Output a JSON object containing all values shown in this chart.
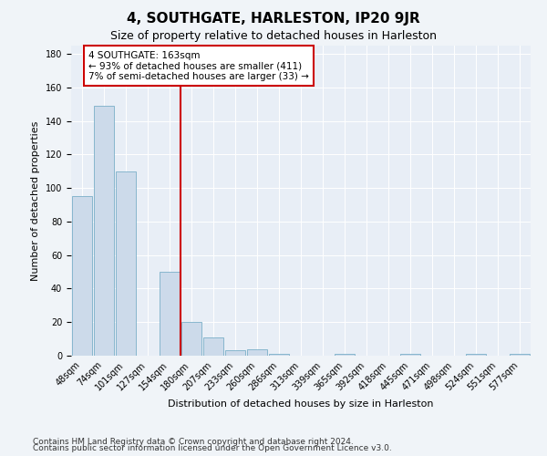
{
  "title": "4, SOUTHGATE, HARLESTON, IP20 9JR",
  "subtitle": "Size of property relative to detached houses in Harleston",
  "xlabel": "Distribution of detached houses by size in Harleston",
  "ylabel": "Number of detached properties",
  "categories": [
    "48sqm",
    "74sqm",
    "101sqm",
    "127sqm",
    "154sqm",
    "180sqm",
    "207sqm",
    "233sqm",
    "260sqm",
    "286sqm",
    "313sqm",
    "339sqm",
    "365sqm",
    "392sqm",
    "418sqm",
    "445sqm",
    "471sqm",
    "498sqm",
    "524sqm",
    "551sqm",
    "577sqm"
  ],
  "values": [
    95,
    149,
    110,
    0,
    50,
    20,
    11,
    3,
    4,
    1,
    0,
    0,
    1,
    0,
    0,
    1,
    0,
    0,
    1,
    0,
    1
  ],
  "bar_color": "#ccdaea",
  "bar_edge_color": "#7aafc8",
  "vline_x": 4.5,
  "annotation_text": "4 SOUTHGATE: 163sqm\n← 93% of detached houses are smaller (411)\n7% of semi-detached houses are larger (33) →",
  "annotation_box_color": "#ffffff",
  "annotation_box_edge_color": "#cc0000",
  "vline_color": "#cc0000",
  "ylim": [
    0,
    185
  ],
  "yticks": [
    0,
    20,
    40,
    60,
    80,
    100,
    120,
    140,
    160,
    180
  ],
  "footer_line1": "Contains HM Land Registry data © Crown copyright and database right 2024.",
  "footer_line2": "Contains public sector information licensed under the Open Government Licence v3.0.",
  "bg_color": "#f0f4f8",
  "plot_bg_color": "#e8eef6",
  "title_fontsize": 11,
  "subtitle_fontsize": 9,
  "axis_label_fontsize": 8,
  "tick_fontsize": 7,
  "annotation_fontsize": 7.5,
  "footer_fontsize": 6.5
}
